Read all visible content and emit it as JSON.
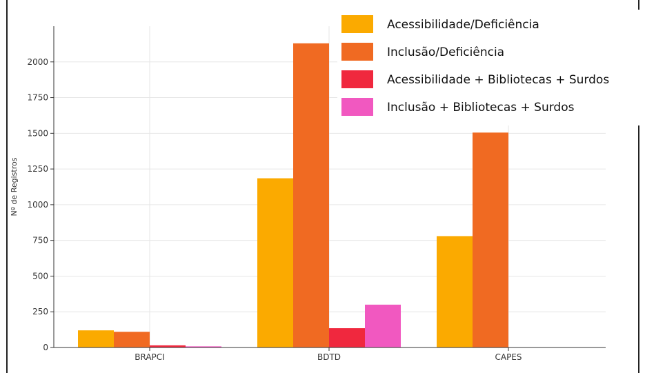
{
  "chart_data": {
    "type": "bar",
    "title": "",
    "xlabel": "",
    "ylabel": "Nº de Registros",
    "categories": [
      "BRAPCI",
      "BDTD",
      "CAPES"
    ],
    "ylim": [
      0,
      2250
    ],
    "yticks": [
      0,
      250,
      500,
      750,
      1000,
      1250,
      1500,
      1750,
      2000
    ],
    "grid": true,
    "legend_position": "top-right",
    "series": [
      {
        "name": "Acessibilidade/Deficiência",
        "color": "#FBAA00",
        "values": [
          120,
          1185,
          780
        ]
      },
      {
        "name": "Inclusão/Deficiência",
        "color": "#F06A22",
        "values": [
          110,
          2130,
          1505
        ]
      },
      {
        "name": "Acessibilidade + Bibliotecas + Surdos",
        "color": "#F0283E",
        "values": [
          15,
          135,
          0
        ]
      },
      {
        "name": "Inclusão + Bibliotecas + Surdos",
        "color": "#F158C0",
        "values": [
          8,
          300,
          0
        ]
      }
    ]
  }
}
